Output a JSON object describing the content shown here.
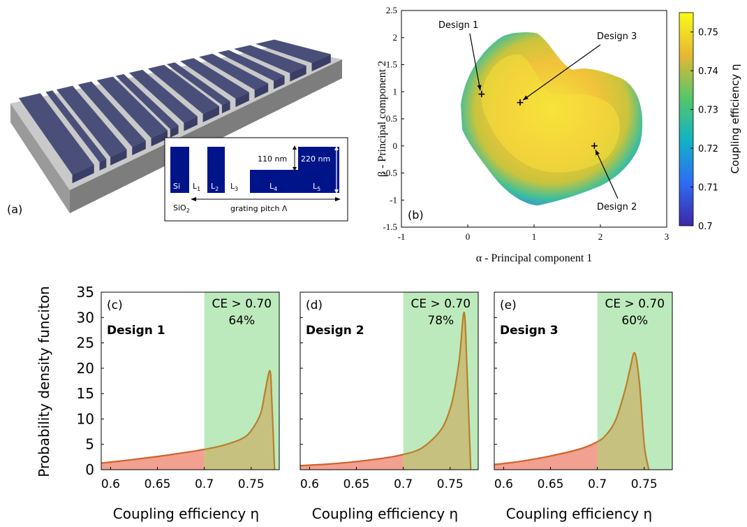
{
  "panel_a": {
    "label": "(a)",
    "inset": {
      "si": "Si",
      "sio2": "SiO",
      "sio2_sub": "2",
      "L1": "L",
      "L1_sub": "1",
      "L2": "L",
      "L2_sub": "2",
      "L3": "L",
      "L3_sub": "3",
      "L4": "L",
      "L4_sub": "4",
      "L5": "L",
      "L5_sub": "5",
      "dim_110": "110 nm",
      "dim_220": "220 nm",
      "pitch": "grating pitch Λ"
    }
  },
  "chart_data": [
    {
      "type": "heatmap",
      "panel": "(b)",
      "xlabel": "α - Principal component 1",
      "ylabel": "β - Principal component 2",
      "xlim": [
        -1,
        3
      ],
      "ylim": [
        -1.5,
        2.5
      ],
      "xticks": [
        "-1",
        "0",
        "1",
        "2",
        "3"
      ],
      "yticks": [
        "-1.5",
        "-1",
        "-0.5",
        "0",
        "0.5",
        "1",
        "1.5",
        "2",
        "2.5"
      ],
      "colorbar": {
        "label": "Coupling efficiency η",
        "range": [
          0.7,
          0.755
        ],
        "ticks": [
          "0.7",
          "0.71",
          "0.72",
          "0.73",
          "0.74",
          "0.75"
        ]
      },
      "annotations": [
        {
          "text": "Design 1",
          "point": [
            0.2,
            0.95
          ]
        },
        {
          "text": "Design 3",
          "point": [
            0.78,
            0.8
          ]
        },
        {
          "text": "Design 2",
          "point": [
            1.9,
            0.0
          ]
        }
      ]
    },
    {
      "type": "area",
      "panel": "(c)",
      "design": "Design 1",
      "threshold_text": "CE > 0.70",
      "percent_text": "64%",
      "threshold": 0.7,
      "xlim": [
        0.59,
        0.78
      ],
      "ylim": [
        0,
        35
      ],
      "xticks": [
        "0.6",
        "0.65",
        "0.7",
        "0.75"
      ],
      "xlabel": "Coupling efficiency η",
      "x": [
        0.59,
        0.62,
        0.65,
        0.68,
        0.7,
        0.72,
        0.74,
        0.75,
        0.76,
        0.765,
        0.77,
        0.772,
        0.775
      ],
      "y": [
        1.3,
        1.9,
        2.6,
        3.4,
        4.0,
        4.8,
        6.1,
        7.7,
        11.0,
        15.5,
        19.5,
        14.0,
        0.0
      ]
    },
    {
      "type": "area",
      "panel": "(d)",
      "design": "Design 2",
      "threshold_text": "CE > 0.70",
      "percent_text": "78%",
      "threshold": 0.7,
      "xlim": [
        0.59,
        0.78
      ],
      "ylim": [
        0,
        35
      ],
      "xticks": [
        "0.6",
        "0.65",
        "0.7",
        "0.75"
      ],
      "xlabel": "Coupling efficiency η",
      "x": [
        0.59,
        0.62,
        0.65,
        0.68,
        0.7,
        0.72,
        0.74,
        0.75,
        0.755,
        0.76,
        0.765,
        0.768,
        0.772
      ],
      "y": [
        0.8,
        1.1,
        1.6,
        2.3,
        3.0,
        4.3,
        7.8,
        12.0,
        16.0,
        22.0,
        31.0,
        20.0,
        0.0
      ]
    },
    {
      "type": "area",
      "panel": "(e)",
      "design": "Design 3",
      "threshold_text": "CE > 0.70",
      "percent_text": "60%",
      "threshold": 0.7,
      "xlim": [
        0.59,
        0.78
      ],
      "ylim": [
        0,
        35
      ],
      "xticks": [
        "0.6",
        "0.65",
        "0.7",
        "0.75"
      ],
      "xlabel": "Coupling efficiency η",
      "x": [
        0.59,
        0.62,
        0.65,
        0.68,
        0.7,
        0.71,
        0.72,
        0.73,
        0.735,
        0.74,
        0.745,
        0.75,
        0.755
      ],
      "y": [
        1.0,
        1.7,
        2.7,
        4.0,
        5.5,
        7.0,
        10.0,
        16.0,
        20.0,
        23.0,
        17.0,
        5.0,
        0.0
      ]
    }
  ],
  "bottom_ylabel": "Probability density funciton",
  "bottom_yticks": [
    "0",
    "5",
    "10",
    "15",
    "20",
    "25",
    "30",
    "35"
  ],
  "colors": {
    "green_region": "#bdeabd",
    "curve": "#b87f2a",
    "fill_left": "#f2a090",
    "grating": "#4a4f7a",
    "inset_blue": "#00148a"
  }
}
